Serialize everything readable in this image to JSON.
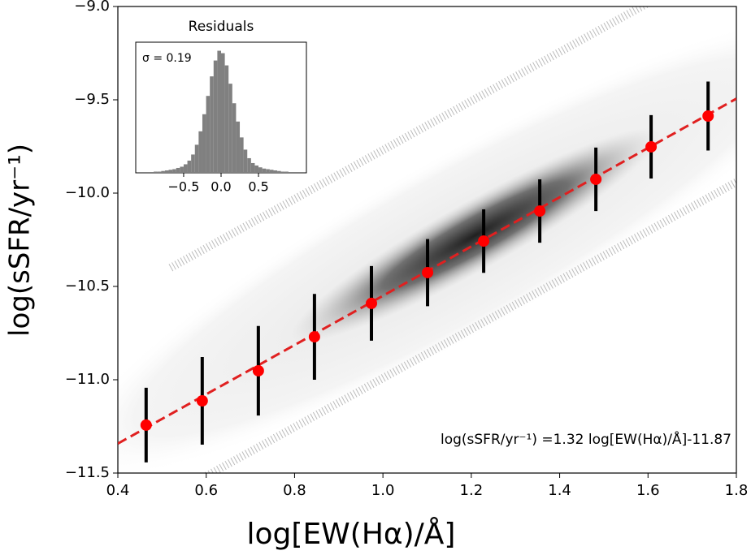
{
  "chart_data": [
    {
      "type": "errorbar",
      "xlabel": "log[EW(Hα)/Å]",
      "ylabel": "log(sSFR/yr⁻¹)",
      "x": [
        0.464,
        0.591,
        0.718,
        0.845,
        0.974,
        1.101,
        1.228,
        1.355,
        1.482,
        1.607,
        1.736
      ],
      "values": [
        -11.243,
        -11.113,
        -10.952,
        -10.77,
        -10.591,
        -10.426,
        -10.257,
        -10.096,
        -9.926,
        -9.752,
        -9.587
      ],
      "errors": [
        0.2,
        0.235,
        0.24,
        0.23,
        0.2,
        0.18,
        0.17,
        0.17,
        0.17,
        0.17,
        0.185
      ],
      "color": "#ff0000",
      "error_color": "#000000",
      "fit": {
        "slope": 1.32,
        "intercept": -11.87,
        "color": "#e02020",
        "label": "log(sSFR/yr⁻¹) =1.32 log[EW(Hα)/Å]-11.87"
      },
      "xlim": [
        0.4,
        1.8
      ],
      "ylim": [
        -11.5,
        -9.0
      ],
      "xticks": [
        0.4,
        0.6,
        0.8,
        {
          "value": 1.0,
          "label": "1.0"
        },
        1.2,
        1.4,
        1.6,
        1.8
      ],
      "yticks": [
        {
          "value": -11.5,
          "label": "−11.5"
        },
        {
          "value": -11.0,
          "label": "−11.0"
        },
        {
          "value": -10.5,
          "label": "−10.5"
        },
        {
          "value": -10.0,
          "label": "−10.0"
        },
        {
          "value": -9.5,
          "label": "−9.5"
        },
        {
          "value": -9.0,
          "label": "−9.0"
        }
      ]
    },
    {
      "type": "histogram",
      "title": "Residuals",
      "annotation": "σ = 0.19",
      "color": "#808080",
      "bins": [
        -0.9,
        -0.85,
        -0.8,
        -0.75,
        -0.7,
        -0.65,
        -0.6,
        -0.55,
        -0.5,
        -0.45,
        -0.4,
        -0.35,
        -0.3,
        -0.25,
        -0.2,
        -0.15,
        -0.1,
        -0.05,
        0,
        0.05,
        0.1,
        0.15,
        0.2,
        0.25,
        0.3,
        0.35,
        0.4,
        0.45,
        0.5,
        0.55,
        0.6,
        0.65,
        0.7,
        0.75,
        0.8,
        0.85,
        0.9
      ],
      "values": [
        0.01,
        0.01,
        0.015,
        0.02,
        0.025,
        0.03,
        0.04,
        0.05,
        0.07,
        0.1,
        0.15,
        0.23,
        0.34,
        0.48,
        0.63,
        0.79,
        0.92,
        1.0,
        0.98,
        0.88,
        0.73,
        0.57,
        0.42,
        0.29,
        0.19,
        0.12,
        0.08,
        0.06,
        0.045,
        0.035,
        0.03,
        0.025,
        0.02,
        0.015,
        0.01,
        0.01
      ],
      "xlim": [
        -1.14,
        1.14
      ],
      "ylim": [
        0,
        1.07
      ],
      "xticks": [
        {
          "value": -0.5,
          "label": "−0.5"
        },
        {
          "value": 0.0,
          "label": "0.0"
        },
        {
          "value": 0.5,
          "label": "0.5"
        }
      ]
    }
  ]
}
